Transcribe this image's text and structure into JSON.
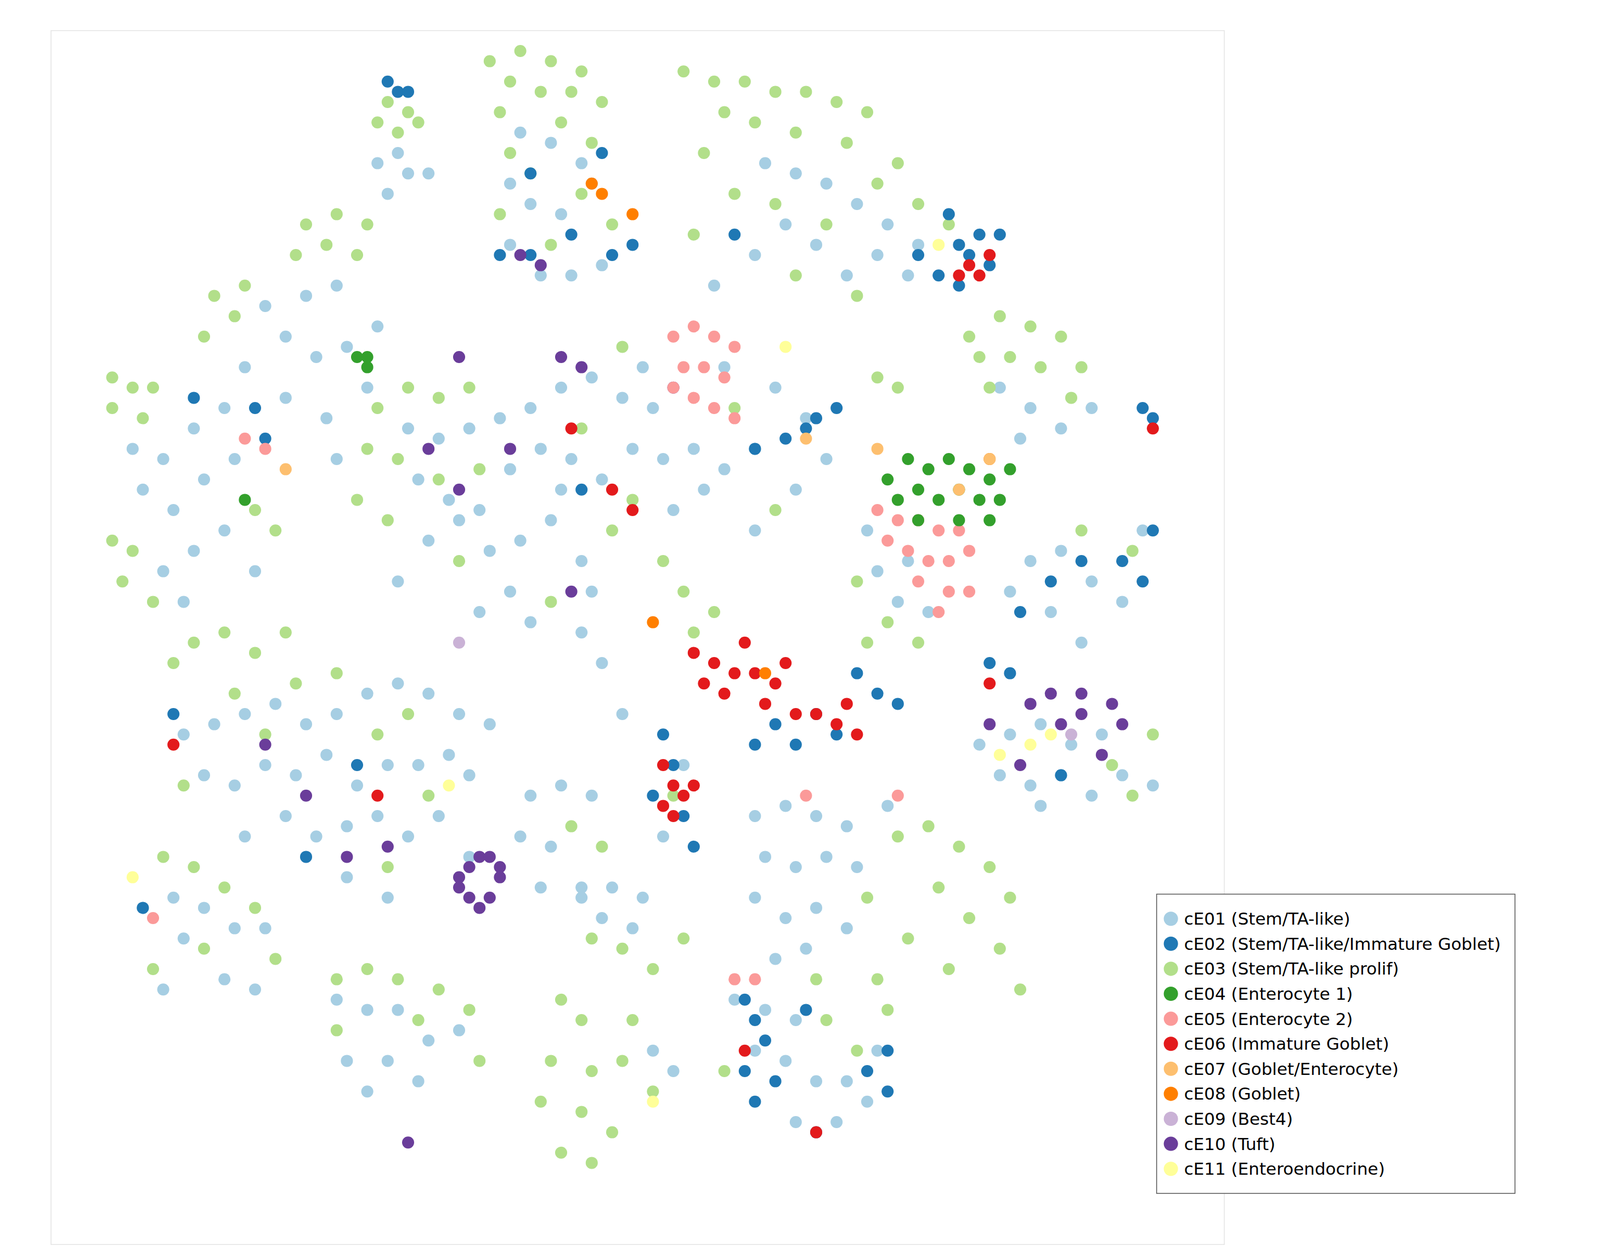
{
  "chart_data": {
    "type": "scatter",
    "xlim": [
      5,
      120
    ],
    "ylim": [
      122,
      3
    ],
    "tick_labels": false,
    "legend": "lower right",
    "marker": "circle",
    "series": [
      {
        "name": "cE01 (Stem/TA-like)",
        "color": "#a6cee3",
        "x": [
          37,
          40,
          38,
          42,
          39,
          51,
          54,
          57,
          52,
          55,
          58,
          50,
          53,
          56,
          59,
          50,
          75,
          78,
          81,
          84,
          87,
          77,
          80,
          86,
          89,
          74,
          83,
          90,
          70,
          98,
          101,
          104,
          107,
          100,
          30,
          33,
          28,
          31,
          34,
          36,
          32,
          28,
          26,
          24,
          33,
          37,
          13,
          16,
          19,
          22,
          14,
          17,
          20,
          23,
          16,
          19,
          22,
          18,
          25,
          40,
          43,
          46,
          49,
          52,
          55,
          58,
          61,
          64,
          41,
          44,
          47,
          50,
          53,
          56,
          59,
          62,
          65,
          68,
          42,
          45,
          48,
          51,
          54,
          57,
          58,
          57,
          59,
          61,
          39,
          50,
          55,
          66,
          69,
          71,
          74,
          63,
          71,
          76,
          79,
          81,
          74,
          78,
          52,
          47,
          85,
          86,
          88,
          91,
          89,
          101,
          104,
          107,
          110,
          103,
          106,
          99,
          112,
          96,
          99,
          102,
          105,
          108,
          98,
          101,
          104,
          107,
          110,
          102,
          113,
          18,
          21,
          24,
          27,
          30,
          33,
          36,
          39,
          42,
          45,
          48,
          20,
          23,
          26,
          29,
          32,
          35,
          38,
          41,
          44,
          28,
          31,
          34,
          37,
          40,
          34,
          38,
          24,
          46,
          52,
          55,
          58,
          51,
          54,
          53,
          57,
          74,
          77,
          80,
          83,
          75,
          78,
          81,
          84,
          74,
          77,
          80,
          83,
          76,
          79,
          87,
          14,
          17,
          20,
          23,
          26,
          18,
          22,
          16,
          25,
          33,
          36,
          39,
          42,
          45,
          34,
          38,
          41,
          36,
          57,
          60,
          63,
          59,
          62,
          64,
          66,
          72,
          75,
          78,
          74,
          77,
          80,
          83,
          86,
          82,
          85,
          78,
          65,
          67,
          46,
          43
        ],
        "y": [
          16,
          17,
          19,
          17,
          15,
          13,
          14,
          16,
          20,
          21,
          18,
          24,
          27,
          27,
          26,
          18,
          16,
          17,
          18,
          20,
          22,
          22,
          24,
          25,
          27,
          25,
          27,
          24,
          28,
          38,
          40,
          42,
          40,
          43,
          29,
          28,
          33,
          35,
          34,
          38,
          41,
          39,
          30,
          36,
          45,
          32,
          44,
          45,
          42,
          40,
          48,
          50,
          47,
          45,
          56,
          54,
          52,
          59,
          56,
          42,
          43,
          42,
          41,
          40,
          38,
          37,
          39,
          40,
          47,
          49,
          50,
          46,
          44,
          45,
          47,
          44,
          45,
          44,
          53,
          51,
          54,
          53,
          51,
          55,
          58,
          62,
          65,
          70,
          57,
          58,
          48,
          50,
          48,
          46,
          44,
          36,
          36,
          38,
          41,
          45,
          52,
          48,
          61,
          60,
          52,
          56,
          59,
          60,
          55,
          55,
          54,
          57,
          59,
          60,
          63,
          58,
          52,
          73,
          72,
          71,
          73,
          72,
          76,
          77,
          76,
          78,
          76,
          79,
          77,
          72,
          71,
          70,
          69,
          71,
          70,
          68,
          67,
          68,
          70,
          71,
          76,
          77,
          75,
          76,
          74,
          77,
          75,
          75,
          74,
          80,
          82,
          81,
          80,
          82,
          86,
          88,
          82,
          76,
          78,
          77,
          78,
          82,
          83,
          87,
          87,
          80,
          79,
          80,
          81,
          84,
          85,
          84,
          85,
          88,
          90,
          89,
          91,
          94,
          93,
          79,
          89,
          88,
          89,
          91,
          91,
          92,
          96,
          97,
          97,
          98,
          99,
          99,
          102,
          101,
          104,
          104,
          106,
          107,
          88,
          87,
          88,
          90,
          91,
          103,
          105,
          98,
          99,
          100,
          103,
          104,
          106,
          106,
          103,
          110,
          108,
          110,
          82,
          75,
          84,
          80
        ]
      },
      {
        "name": "cE02 (Stem/TA-like/Immature Goblet)",
        "color": "#1f78b4",
        "x": [
          38,
          39,
          40,
          49,
          52,
          56,
          59,
          52,
          93,
          94,
          95,
          96,
          92,
          97,
          90,
          94,
          98,
          112,
          113,
          74,
          77,
          80,
          82,
          79,
          62,
          60,
          57,
          26,
          25,
          19,
          84,
          86,
          88,
          80,
          82,
          76,
          78,
          74,
          65,
          66,
          67,
          68,
          64,
          100,
          103,
          106,
          110,
          112,
          113,
          97,
          99,
          73,
          74,
          75,
          73,
          76,
          74,
          85,
          87,
          80,
          87,
          79,
          17,
          35,
          30,
          14,
          104,
          72
        ],
        "y": [
          8,
          9,
          9,
          25,
          25,
          23,
          15,
          17,
          21,
          24,
          25,
          23,
          27,
          26,
          25,
          28,
          23,
          40,
          41,
          44,
          43,
          41,
          40,
          42,
          24,
          25,
          48,
          43,
          40,
          39,
          66,
          68,
          69,
          70,
          72,
          71,
          73,
          73,
          72,
          75,
          80,
          83,
          78,
          60,
          57,
          55,
          55,
          57,
          52,
          65,
          66,
          98,
          100,
          102,
          105,
          106,
          108,
          105,
          103,
          111,
          107,
          99,
          70,
          75,
          84,
          89,
          76,
          23
        ]
      },
      {
        "name": "cE03 (Stem/TA-like prolif)",
        "color": "#b2df8a",
        "x": [
          38,
          40,
          37,
          39,
          41,
          48,
          51,
          54,
          57,
          50,
          53,
          56,
          59,
          49,
          55,
          58,
          50,
          52,
          57,
          49,
          60,
          54,
          67,
          70,
          73,
          76,
          79,
          82,
          85,
          71,
          74,
          78,
          83,
          88,
          86,
          69,
          72,
          76,
          81,
          90,
          93,
          68,
          78,
          84,
          95,
          98,
          101,
          104,
          96,
          99,
          102,
          106,
          97,
          105,
          30,
          33,
          36,
          29,
          32,
          35,
          21,
          24,
          20,
          23,
          11,
          13,
          15,
          11,
          14,
          11,
          13,
          12,
          15,
          25,
          27,
          37,
          40,
          43,
          46,
          36,
          39,
          35,
          38,
          43,
          47,
          60,
          65,
          67,
          68,
          45,
          62,
          54,
          70,
          72,
          61,
          76,
          57,
          86,
          88,
          84,
          87,
          90,
          85,
          17,
          19,
          22,
          25,
          28,
          23,
          29,
          33,
          26,
          37,
          40,
          18,
          42,
          38,
          88,
          91,
          94,
          97,
          99,
          92,
          95,
          89,
          98,
          85,
          93,
          100,
          86,
          80,
          16,
          19,
          22,
          25,
          20,
          15,
          27,
          33,
          36,
          39,
          43,
          46,
          33,
          41,
          47,
          55,
          57,
          54,
          58,
          61,
          53,
          57,
          60,
          55,
          58,
          64,
          62,
          58,
          61,
          64,
          67,
          81,
          84,
          87,
          71,
          56,
          59,
          109,
          111,
          113,
          106,
          111,
          66
        ],
        "y": [
          10,
          11,
          12,
          13,
          12,
          6,
          5,
          6,
          7,
          8,
          9,
          9,
          10,
          11,
          12,
          14,
          15,
          17,
          19,
          21,
          22,
          24,
          7,
          8,
          8,
          9,
          9,
          10,
          11,
          11,
          12,
          13,
          14,
          16,
          18,
          15,
          19,
          20,
          22,
          20,
          22,
          23,
          27,
          29,
          33,
          31,
          32,
          33,
          35,
          35,
          36,
          36,
          38,
          39,
          22,
          21,
          22,
          25,
          24,
          25,
          29,
          28,
          33,
          31,
          37,
          38,
          38,
          40,
          41,
          53,
          54,
          57,
          59,
          50,
          52,
          40,
          38,
          39,
          38,
          44,
          45,
          49,
          51,
          47,
          46,
          52,
          55,
          58,
          62,
          55,
          49,
          59,
          60,
          40,
          34,
          50,
          42,
          37,
          38,
          57,
          61,
          63,
          63,
          65,
          63,
          62,
          64,
          62,
          68,
          67,
          66,
          72,
          72,
          70,
          77,
          78,
          85,
          82,
          81,
          83,
          85,
          88,
          87,
          90,
          92,
          93,
          88,
          95,
          97,
          96,
          96,
          84,
          85,
          87,
          89,
          93,
          95,
          94,
          96,
          95,
          96,
          97,
          99,
          101,
          100,
          104,
          98,
          100,
          104,
          105,
          104,
          108,
          109,
          111,
          113,
          114,
          107,
          100,
          92,
          93,
          95,
          92,
          100,
          103,
          99,
          105,
          81,
          83,
          75,
          78,
          72,
          52,
          54,
          78
        ]
      },
      {
        "name": "cE04 (Enterocyte 1)",
        "color": "#33a02c",
        "x": [
          87,
          89,
          91,
          93,
          95,
          97,
          99,
          88,
          90,
          92,
          94,
          96,
          98,
          90,
          94,
          97,
          35,
          36,
          24,
          36
        ],
        "y": [
          47,
          45,
          46,
          45,
          46,
          47,
          46,
          49,
          48,
          49,
          48,
          49,
          49,
          51,
          51,
          51,
          35,
          36,
          49,
          35
        ]
      },
      {
        "name": "cE05 (Enterocyte 2)",
        "color": "#fb9a99",
        "x": [
          66,
          68,
          70,
          72,
          67,
          69,
          71,
          68,
          70,
          72,
          66,
          86,
          88,
          90,
          92,
          94,
          87,
          89,
          91,
          93,
          95,
          90,
          93,
          95,
          92,
          72,
          74,
          24,
          26,
          15,
          79,
          88
        ],
        "y": [
          33,
          32,
          33,
          34,
          36,
          36,
          37,
          39,
          40,
          41,
          38,
          50,
          51,
          51,
          52,
          52,
          53,
          54,
          55,
          55,
          54,
          57,
          58,
          58,
          60,
          96,
          96,
          43,
          44,
          90,
          78,
          78
        ]
      },
      {
        "name": "cE06 (Immature Goblet)",
        "color": "#e31a1c",
        "x": [
          95,
          96,
          97,
          94,
          68,
          70,
          72,
          74,
          76,
          71,
          75,
          78,
          80,
          82,
          84,
          73,
          69,
          77,
          83,
          65,
          66,
          67,
          66,
          68,
          65,
          113,
          60,
          62,
          56,
          17,
          37,
          97,
          73,
          80
        ],
        "y": [
          26,
          27,
          25,
          27,
          64,
          65,
          66,
          66,
          67,
          68,
          69,
          70,
          70,
          71,
          72,
          63,
          67,
          65,
          69,
          75,
          77,
          78,
          80,
          77,
          79,
          42,
          48,
          50,
          42,
          73,
          78,
          67,
          103,
          111
        ]
      },
      {
        "name": "cE07 (Goblet/Enterocyte)",
        "color": "#fdbf6f",
        "x": [
          79,
          86,
          97,
          28,
          94
        ],
        "y": [
          43,
          44,
          45,
          46,
          48
        ]
      },
      {
        "name": "cE08 (Goblet)",
        "color": "#ff7f00",
        "x": [
          58,
          59,
          62,
          75,
          64,
          97
        ],
        "y": [
          18,
          19,
          21,
          66,
          61,
          45
        ]
      },
      {
        "name": "cE09 (Best4)",
        "color": "#cab2d6",
        "x": [
          45,
          105
        ],
        "y": [
          63,
          72
        ]
      },
      {
        "name": "cE10 (Tuft)",
        "color": "#6a3d9a",
        "x": [
          45,
          46,
          47,
          48,
          49,
          49,
          48,
          47,
          46,
          45,
          101,
          103,
          106,
          109,
          110,
          97,
          100,
          108,
          106,
          104,
          45,
          55,
          57,
          66,
          45,
          50,
          42,
          56,
          51,
          53,
          26,
          30,
          34,
          38,
          40
        ],
        "y": [
          86,
          85,
          84,
          84,
          85,
          86,
          88,
          89,
          88,
          87,
          69,
          68,
          68,
          69,
          71,
          71,
          75,
          74,
          70,
          71,
          35,
          35,
          36,
          38,
          48,
          44,
          44,
          58,
          25,
          26,
          73,
          78,
          84,
          83,
          112
        ]
      },
      {
        "name": "cE11 (Enteroendocrine)",
        "color": "#ffff99",
        "x": [
          103,
          101,
          98,
          77,
          92,
          13,
          64,
          44
        ],
        "y": [
          72,
          73,
          74,
          34,
          24,
          86,
          108,
          77
        ]
      }
    ]
  }
}
